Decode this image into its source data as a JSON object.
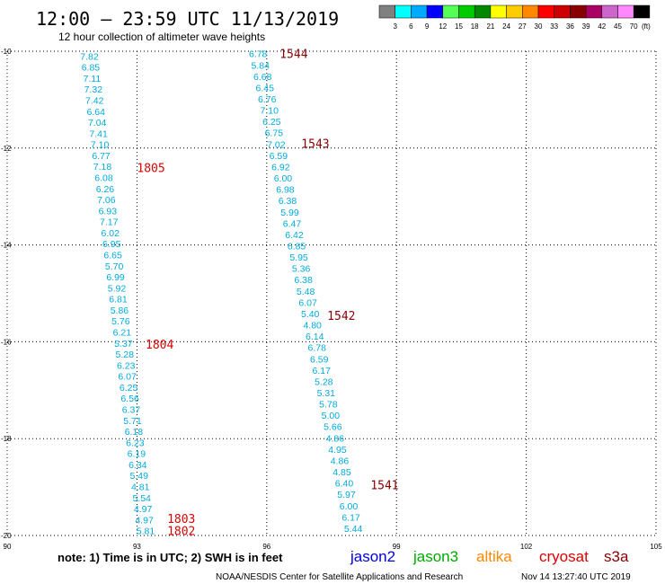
{
  "header": {
    "title": "12:00 – 23:59 UTC 11/13/2019",
    "subtitle": "12 hour collection of altimeter wave heights"
  },
  "legend_scale": {
    "labels": [
      "3",
      "6",
      "9",
      "12",
      "15",
      "18",
      "21",
      "24",
      "27",
      "30",
      "33",
      "36",
      "39",
      "42",
      "45",
      "70",
      "(ft)"
    ],
    "colors": [
      "#808080",
      "#00ffff",
      "#00aaff",
      "#0000ff",
      "#55ff55",
      "#00cc00",
      "#008800",
      "#ffff00",
      "#ffcc00",
      "#ff8800",
      "#ff0000",
      "#cc0000",
      "#880000",
      "#aa0066",
      "#cc66cc",
      "#ff88ff",
      "#000000"
    ]
  },
  "footer": {
    "note": "note:  1) Time is in UTC;  2) SWH is in feet",
    "satellites": [
      {
        "name": "jason2",
        "color": "#0000dd"
      },
      {
        "name": "jason3",
        "color": "#00aa00"
      },
      {
        "name": "altika",
        "color": "#ff8800"
      },
      {
        "name": "cryosat",
        "color": "#dd0000"
      },
      {
        "name": "s3a",
        "color": "#880000"
      }
    ],
    "credit": "NOAA/NESDIS Center for Satellite Applications and Research",
    "timestamp": "Nov 14 13:27:40 UTC 2019"
  },
  "chart_data": {
    "type": "scatter",
    "xlim": [
      90,
      105
    ],
    "ylim": [
      -20,
      -10
    ],
    "x_ticks": [
      "90",
      "93",
      "96",
      "99",
      "102",
      "105"
    ],
    "y_ticks": [
      "-10",
      "-12",
      "-14",
      "-16",
      "-18",
      "-20"
    ],
    "grid": true,
    "value_color": "#00aadd",
    "tracks": [
      {
        "satellite": "cryosat",
        "color": "#dd0000",
        "lon_start": 91.9,
        "lat_start": -10.1,
        "lon_end": 93.2,
        "lat_end": -19.9,
        "values": [
          "7.82",
          "6.85",
          "7.11",
          "7.32",
          "7.42",
          "6.64",
          "7.04",
          "7.41",
          "7.10",
          "6.77",
          "7.18",
          "6.08",
          "6.26",
          "7.06",
          "6.93",
          "7.17",
          "6.02",
          "6.95",
          "6.65",
          "5.70",
          "6.99",
          "5.92",
          "6.81",
          "5.86",
          "5.76",
          "6.21",
          "5.37",
          "5.28",
          "6.23",
          "6.07",
          "6.25",
          "6.56",
          "6.37",
          "5.71",
          "6.18",
          "6.23",
          "6.19",
          "6.34",
          "5.49",
          "4.81",
          "5.54",
          "4.97",
          "4.97",
          "5.81"
        ],
        "time_labels": [
          {
            "text": "1805",
            "lon": 93.0,
            "lat": -12.4
          },
          {
            "text": "1804",
            "lon": 93.2,
            "lat": -16.05
          },
          {
            "text": "1803",
            "lon": 93.7,
            "lat": -19.65
          },
          {
            "text": "1802",
            "lon": 93.7,
            "lat": -19.9
          }
        ]
      },
      {
        "satellite": "s3a",
        "color": "#880000",
        "lon_start": 95.8,
        "lat_start": -10.05,
        "lon_end": 98.0,
        "lat_end": -19.85,
        "values": [
          "6.78",
          "5.84",
          "6.68",
          "6.45",
          "6.76",
          "7.10",
          "6.25",
          "6.75",
          "7.02",
          "6.59",
          "6.92",
          "6.00",
          "6.98",
          "6.38",
          "5.99",
          "6.47",
          "6.42",
          "6.85",
          "5.95",
          "5.36",
          "6.38",
          "5.48",
          "6.07",
          "5.40",
          "4.80",
          "6.14",
          "6.78",
          "6.59",
          "6.17",
          "5.28",
          "5.31",
          "5.78",
          "5.00",
          "5.66",
          "4.86",
          "4.95",
          "4.86",
          "4.85",
          "6.40",
          "5.97",
          "6.00",
          "6.17",
          "5.44"
        ],
        "time_labels": [
          {
            "text": "1544",
            "lon": 96.3,
            "lat": -10.05
          },
          {
            "text": "1543",
            "lon": 96.8,
            "lat": -11.9
          },
          {
            "text": "1542",
            "lon": 97.4,
            "lat": -15.45
          },
          {
            "text": "1541",
            "lon": 98.4,
            "lat": -18.95
          }
        ]
      }
    ]
  }
}
